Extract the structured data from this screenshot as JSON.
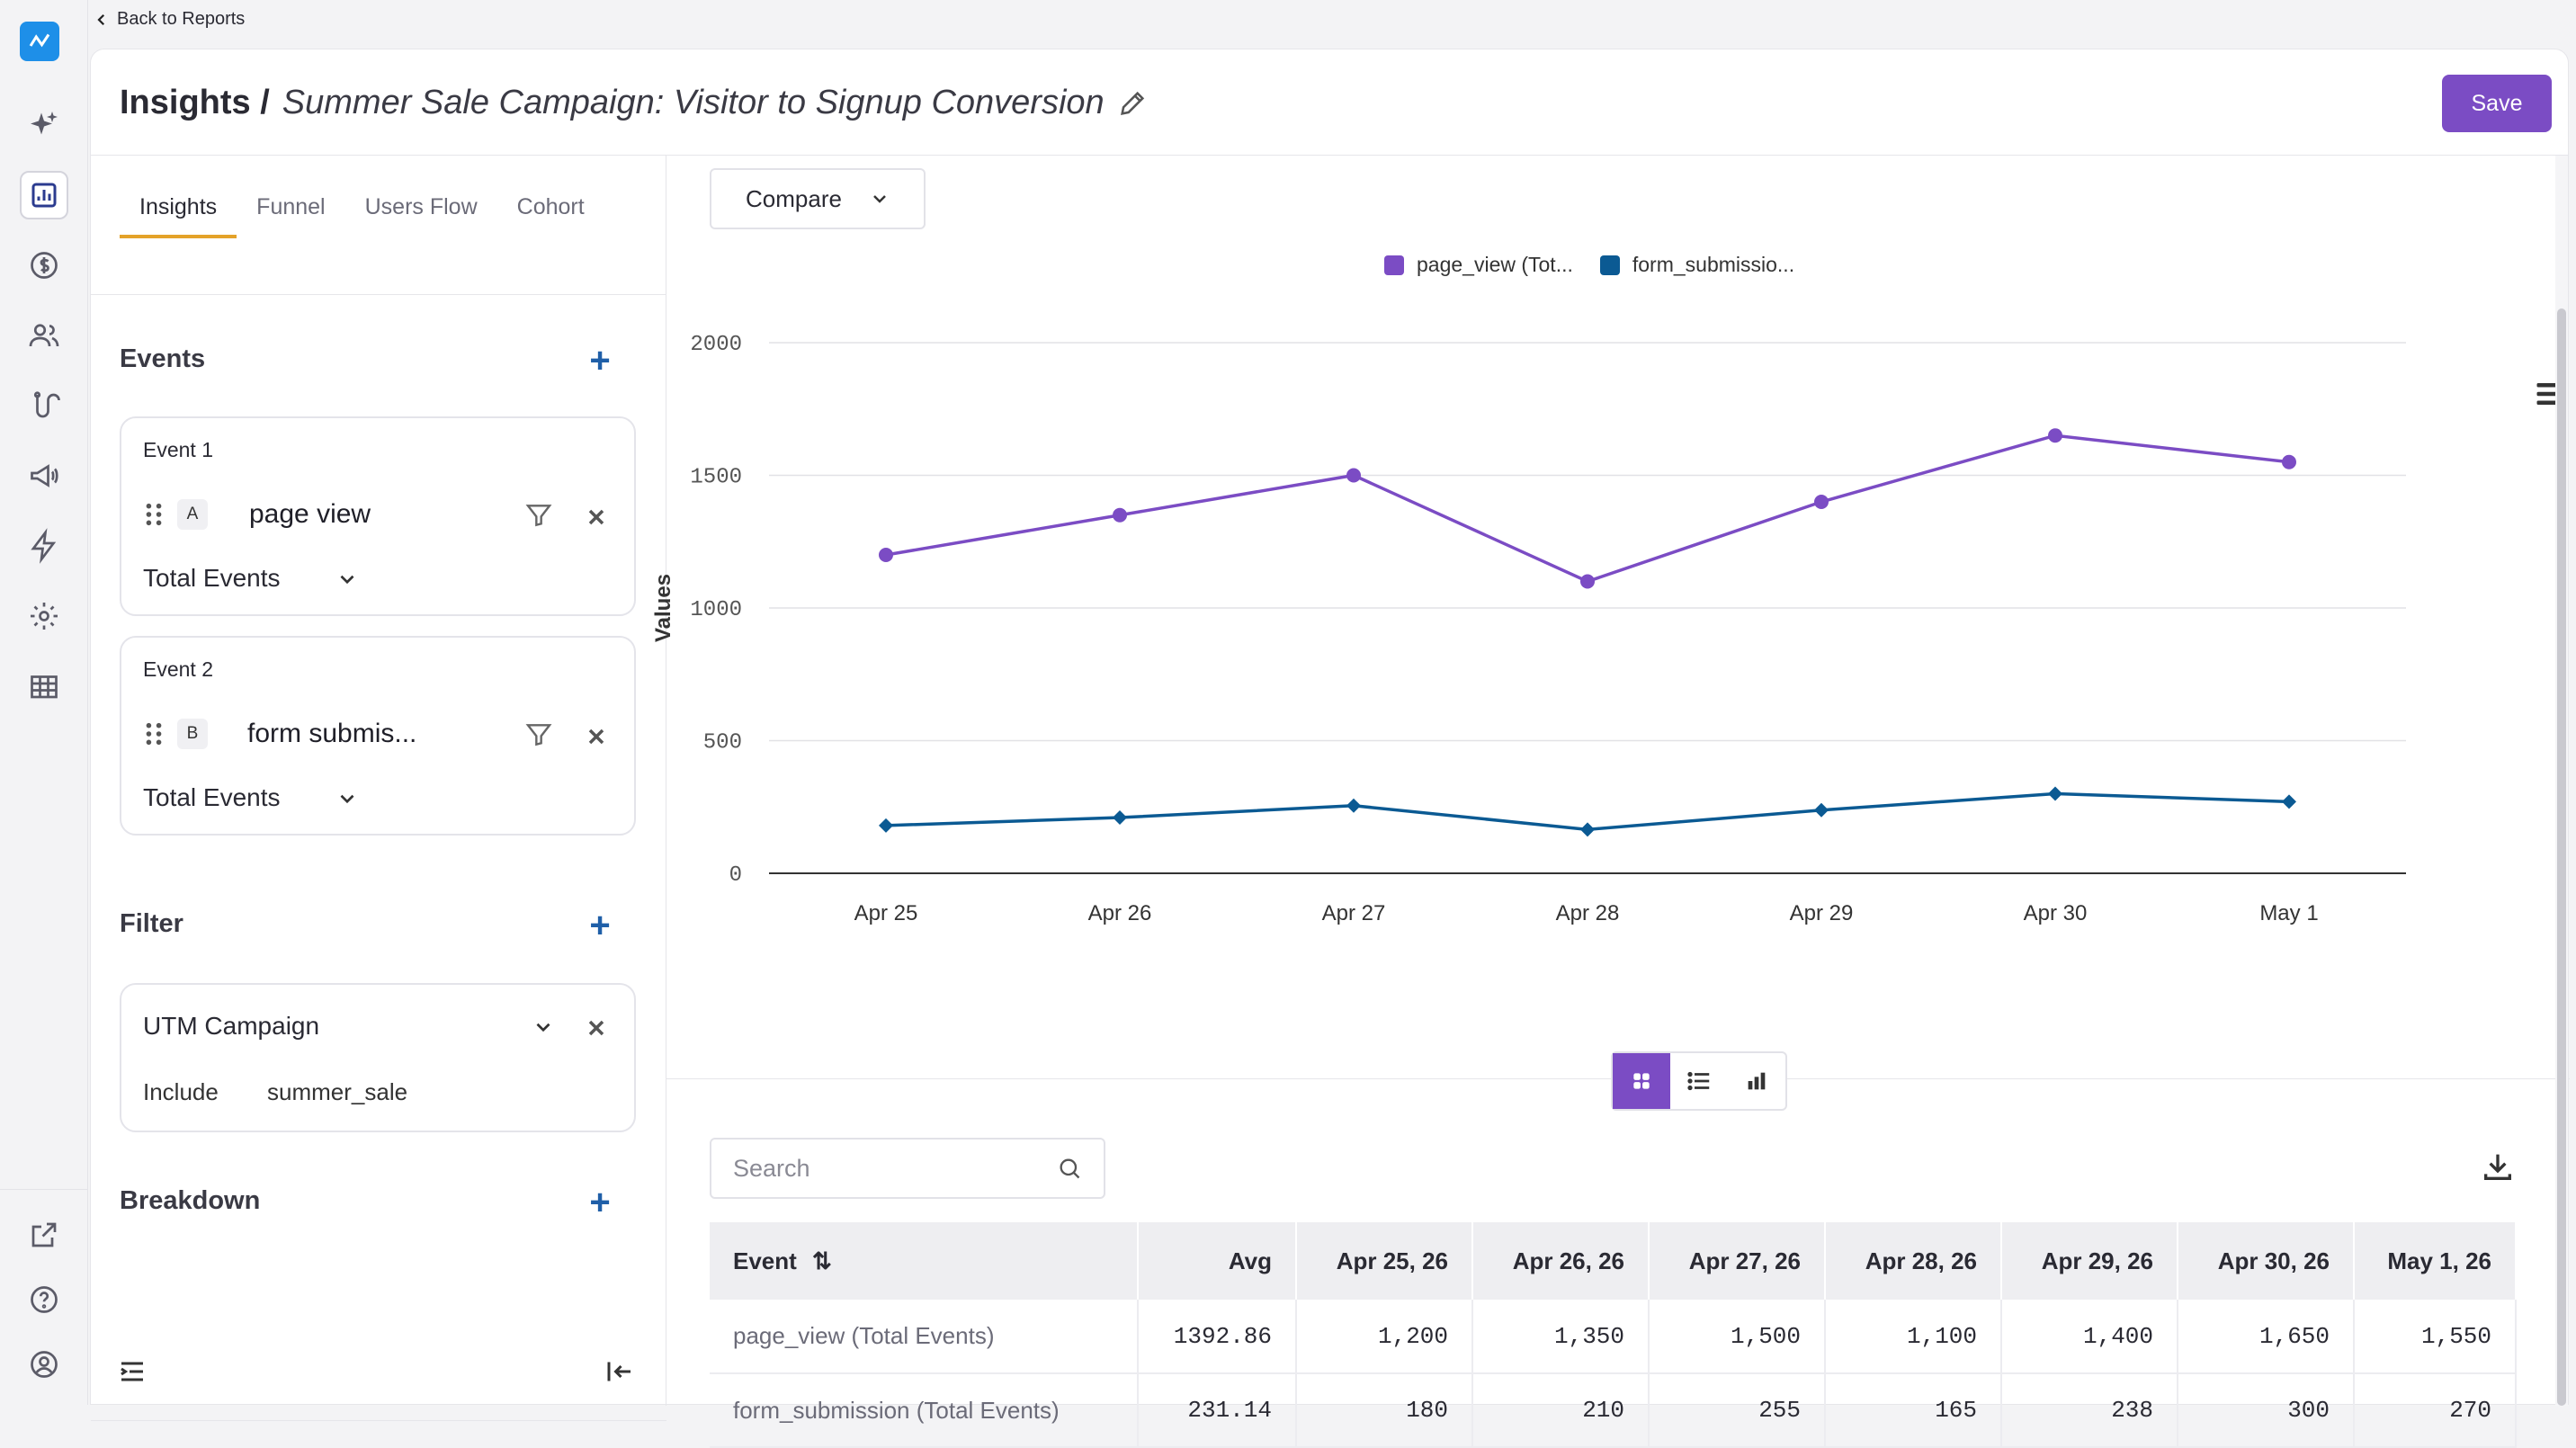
{
  "nav": {
    "back_label": "Back to Reports"
  },
  "header": {
    "section": "Insights /",
    "report_name": "Summer Sale Campaign: Visitor to Signup Conversion",
    "save_label": "Save"
  },
  "tabs": [
    "Insights",
    "Funnel",
    "Users Flow",
    "Cohort"
  ],
  "events_section": {
    "title": "Events",
    "items": [
      {
        "label": "Event 1",
        "letter": "A",
        "name": "page view",
        "aggregation": "Total Events"
      },
      {
        "label": "Event 2",
        "letter": "B",
        "name": "form submis...",
        "aggregation": "Total Events"
      }
    ]
  },
  "filter_section": {
    "title": "Filter",
    "property": "UTM Campaign",
    "operator": "Include",
    "value": "summer_sale"
  },
  "breakdown_section": {
    "title": "Breakdown"
  },
  "toolbar": {
    "compare_label": "Compare",
    "search_placeholder": "Search"
  },
  "legend": [
    {
      "label": "page_view (Tot...",
      "color": "#7b4cc4"
    },
    {
      "label": "form_submissio...",
      "color": "#0b5a93"
    }
  ],
  "chart_data": {
    "type": "line",
    "categories": [
      "Apr 25",
      "Apr 26",
      "Apr 27",
      "Apr 28",
      "Apr 29",
      "Apr 30",
      "May 1"
    ],
    "series": [
      {
        "name": "page_view (Tot...",
        "values": [
          1200,
          1350,
          1500,
          1100,
          1400,
          1650,
          1550
        ],
        "color": "#7b4cc4"
      },
      {
        "name": "form_submissio...",
        "values": [
          180,
          210,
          255,
          165,
          238,
          300,
          270
        ],
        "color": "#0b5a93"
      }
    ],
    "ylabel": "Values",
    "ylim": [
      0,
      2000
    ],
    "yticks": [
      "2000",
      "1500",
      "1000",
      "500",
      "0"
    ],
    "grid": true,
    "legend_position": "top"
  },
  "table": {
    "headers": [
      "Event",
      "Avg",
      "Apr 25, 26",
      "Apr 26, 26",
      "Apr 27, 26",
      "Apr 28, 26",
      "Apr 29, 26",
      "Apr 30, 26",
      "May 1, 26"
    ],
    "rows": [
      [
        "page_view (Total Events)",
        "1392.86",
        "1,200",
        "1,350",
        "1,500",
        "1,100",
        "1,400",
        "1,650",
        "1,550"
      ],
      [
        "form_submission (Total Events)",
        "231.14",
        "180",
        "210",
        "255",
        "165",
        "238",
        "300",
        "270"
      ]
    ]
  }
}
